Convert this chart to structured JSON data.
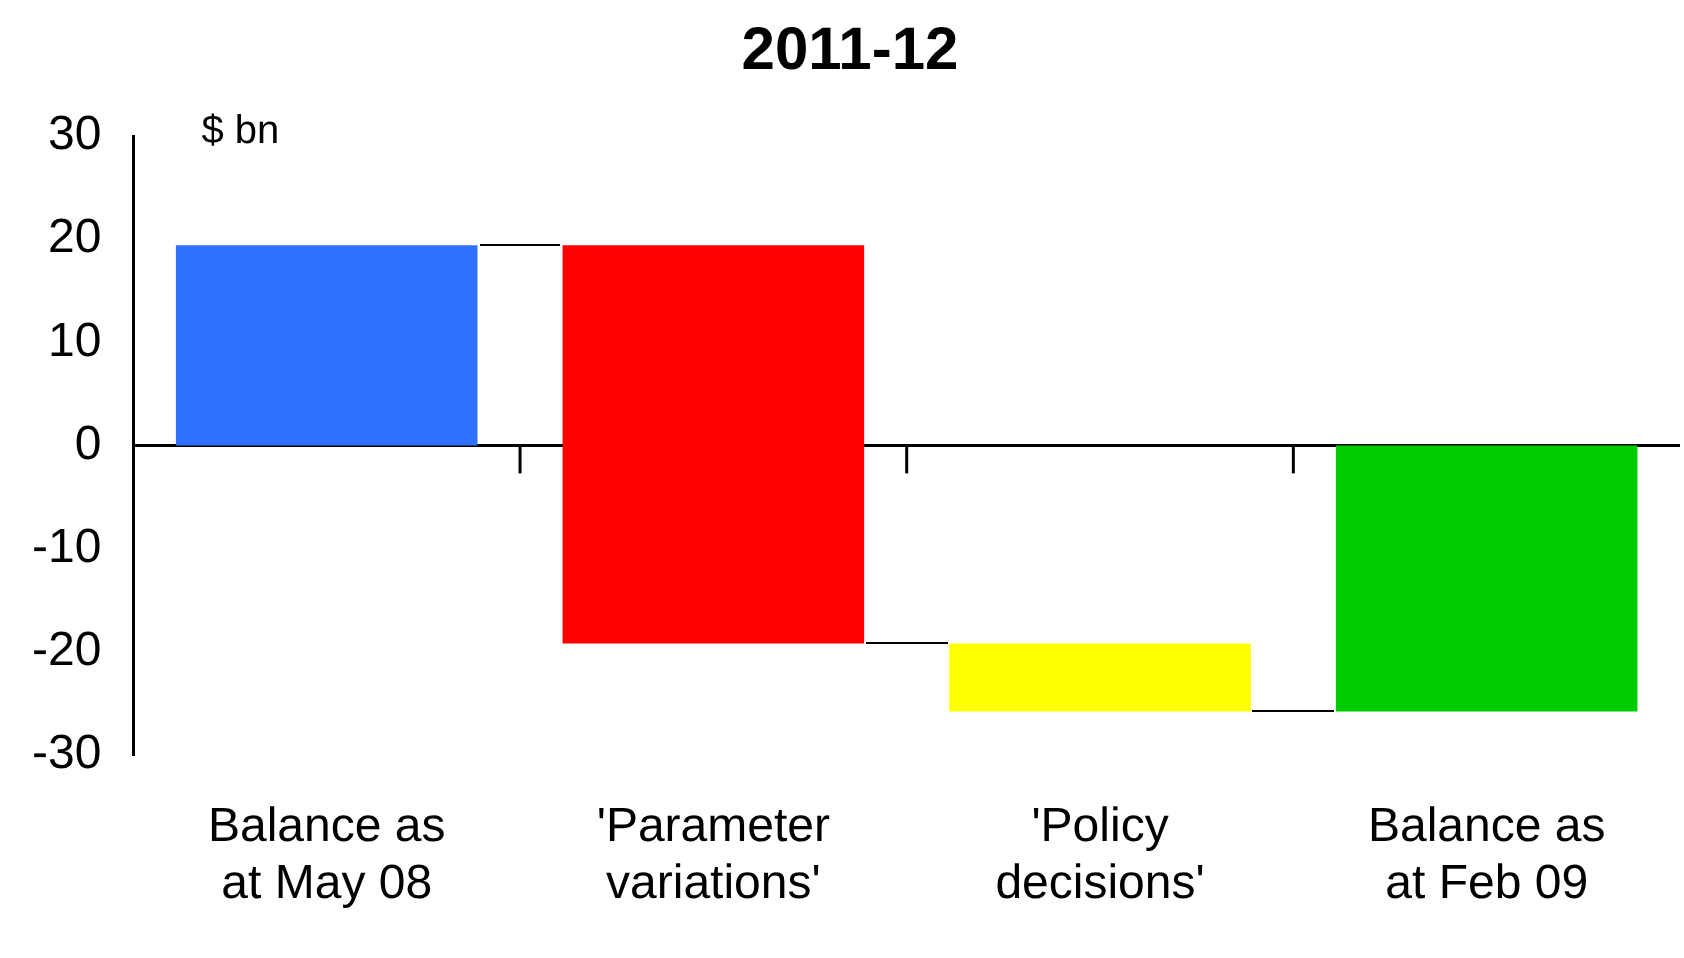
{
  "chart_data": {
    "type": "bar",
    "title": "2011-12",
    "ylabel": "$ bn",
    "categories": [
      "Balance as at May 08",
      "'Parameter variations'",
      "'Policy decisions'",
      "Balance as at Feb 09"
    ],
    "values": [
      19.4,
      -38.6,
      -6.6,
      -25.8
    ],
    "base": [
      0,
      19.4,
      -19.2,
      0
    ],
    "colors": [
      "#3070ff",
      "#ff0000",
      "#ffff00",
      "#00cc00"
    ],
    "ylim": [
      -30,
      30
    ],
    "yticks": [
      -30,
      -20,
      -10,
      0,
      10,
      20,
      30
    ],
    "ref_lines": [
      {
        "axis": "y",
        "value": 0,
        "color": "#000000"
      }
    ],
    "grid": false,
    "legend": false
  }
}
